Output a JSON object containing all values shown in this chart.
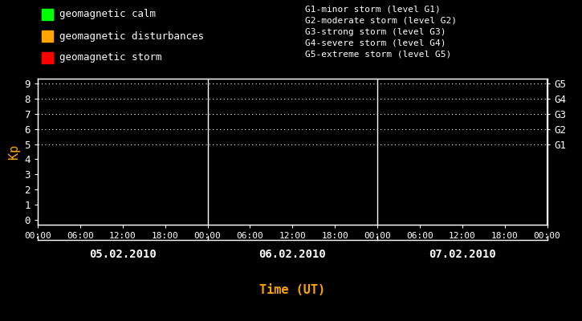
{
  "background_color": "#000000",
  "plot_bg_color": "#000000",
  "xlabel": "Time (UT)",
  "xlabel_color": "#ffa500",
  "ylabel": "Kp",
  "ylabel_color": "#ffa500",
  "tick_color": "#ffffff",
  "spine_color": "#ffffff",
  "yticks": [
    0,
    1,
    2,
    3,
    4,
    5,
    6,
    7,
    8,
    9
  ],
  "dates": [
    "05.02.2010",
    "06.02.2010",
    "07.02.2010"
  ],
  "xtick_labels": [
    "00:00",
    "06:00",
    "12:00",
    "18:00",
    "00:00",
    "06:00",
    "12:00",
    "18:00",
    "00:00",
    "06:00",
    "12:00",
    "18:00",
    "00:00"
  ],
  "dotted_levels": [
    5,
    6,
    7,
    8,
    9
  ],
  "dotted_color": "#ffffff",
  "legend_items": [
    {
      "label": "geomagnetic calm",
      "color": "#00ff00"
    },
    {
      "label": "geomagnetic disturbances",
      "color": "#ffa500"
    },
    {
      "label": "geomagnetic storm",
      "color": "#ff0000"
    }
  ],
  "right_labels": [
    {
      "y": 9,
      "text": "G5"
    },
    {
      "y": 8,
      "text": "G4"
    },
    {
      "y": 7,
      "text": "G3"
    },
    {
      "y": 6,
      "text": "G2"
    },
    {
      "y": 5,
      "text": "G1"
    }
  ],
  "storm_legend": [
    "G1-minor storm (level G1)",
    "G2-moderate storm (level G2)",
    "G3-strong storm (level G3)",
    "G4-severe storm (level G4)",
    "G5-extreme storm (level G5)"
  ],
  "storm_legend_color": "#ffffff",
  "font_name": "monospace",
  "divider_color": "#ffffff",
  "date_label_color": "#ffffff",
  "total_hours": 72
}
